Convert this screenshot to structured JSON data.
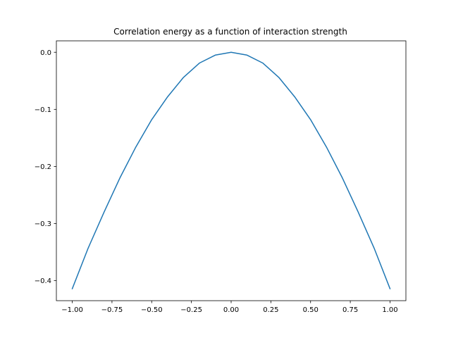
{
  "chart_data": {
    "type": "line",
    "title": "Correlation energy as a function of interaction strength",
    "xlabel": "",
    "ylabel": "",
    "xlim": [
      -1.1,
      1.1
    ],
    "ylim": [
      -0.435,
      0.02
    ],
    "grid": false,
    "line_color": "#1f77b4",
    "x_ticks": [
      -1.0,
      -0.75,
      -0.5,
      -0.25,
      0.0,
      0.25,
      0.5,
      0.75,
      1.0
    ],
    "x_tick_labels": [
      "−1.00",
      "−0.75",
      "−0.50",
      "−0.25",
      "0.00",
      "0.25",
      "0.50",
      "0.75",
      "1.00"
    ],
    "y_ticks": [
      0.0,
      -0.1,
      -0.2,
      -0.3,
      -0.4
    ],
    "y_tick_labels": [
      "0.0",
      "−0.1",
      "−0.2",
      "−0.3",
      "−0.4"
    ],
    "series": [
      {
        "x": [
          -1.0,
          -0.9,
          -0.8,
          -0.7,
          -0.6,
          -0.5,
          -0.4,
          -0.3,
          -0.2,
          -0.1,
          0.0,
          0.1,
          0.2,
          0.3,
          0.4,
          0.5,
          0.6,
          0.7,
          0.8,
          0.9,
          1.0
        ],
        "y": [
          -0.414,
          -0.343,
          -0.28,
          -0.22,
          -0.166,
          -0.118,
          -0.078,
          -0.044,
          -0.019,
          -0.005,
          0.0,
          -0.005,
          -0.019,
          -0.044,
          -0.078,
          -0.118,
          -0.166,
          -0.22,
          -0.28,
          -0.343,
          -0.414
        ]
      }
    ]
  }
}
